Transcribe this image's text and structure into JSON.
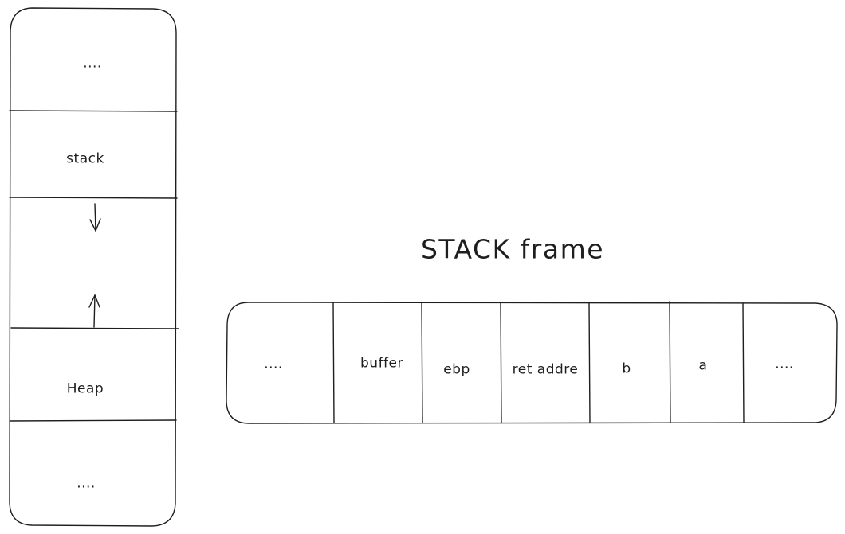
{
  "memory_layout": {
    "segments": [
      {
        "label": "...."
      },
      {
        "label": "stack"
      },
      {
        "label": ""
      },
      {
        "label": "Heap"
      },
      {
        "label": "...."
      }
    ]
  },
  "stack_frame": {
    "title": "STACK frame",
    "cells": [
      {
        "label": "...."
      },
      {
        "label": "buffer"
      },
      {
        "label": "ebp"
      },
      {
        "label": "ret addre"
      },
      {
        "label": "b"
      },
      {
        "label": "a"
      },
      {
        "label": "...."
      }
    ]
  },
  "colors": {
    "stroke": "#1e1e1e",
    "background": "#ffffff"
  }
}
